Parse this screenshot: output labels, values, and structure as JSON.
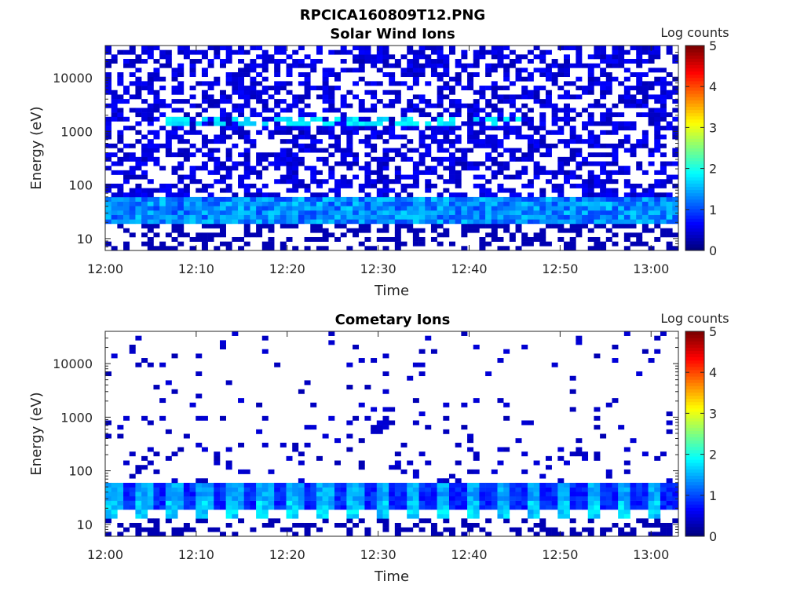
{
  "figure_title": "RPCICA160809T12.PNG",
  "chart_data": [
    {
      "type": "heatmap",
      "title": "Solar Wind Ions",
      "xlabel": "Time",
      "ylabel": "Energy (eV)",
      "x_ticks": [
        "12:00",
        "12:10",
        "12:20",
        "12:30",
        "12:40",
        "12:50",
        "13:00"
      ],
      "y_ticks": [
        "10",
        "100",
        "1000",
        "10000"
      ],
      "y_scale": "log",
      "ylim": [
        6,
        40000
      ],
      "xlim": [
        "12:00",
        "13:03"
      ],
      "colorbar": {
        "label": "Log counts",
        "ticks": [
          "0",
          "1",
          "2",
          "3",
          "4",
          "5"
        ],
        "range": [
          0,
          5
        ]
      },
      "background_counts": "sparse 0.1-0.5 log counts across all energies",
      "bands": [
        {
          "energy_min_eV": 20,
          "energy_max_eV": 55,
          "log_counts": 1.0,
          "description": "persistent low-energy band"
        },
        {
          "energy_min_eV": 1500,
          "energy_max_eV": 1900,
          "log_counts": 1.8,
          "description": "intermittent solar wind peak ~12:06-12:45"
        }
      ]
    },
    {
      "type": "heatmap",
      "title": "Cometary Ions",
      "xlabel": "Time",
      "ylabel": "Energy (eV)",
      "x_ticks": [
        "12:00",
        "12:10",
        "12:20",
        "12:30",
        "12:40",
        "12:50",
        "13:00"
      ],
      "y_ticks": [
        "10",
        "100",
        "1000",
        "10000"
      ],
      "y_scale": "log",
      "ylim": [
        6,
        40000
      ],
      "xlim": [
        "12:00",
        "13:03"
      ],
      "colorbar": {
        "label": "Log counts",
        "ticks": [
          "0",
          "1",
          "2",
          "3",
          "4",
          "5"
        ],
        "range": [
          0,
          5
        ]
      },
      "background_counts": "very sparse, mostly 0.1-0.5 log counts",
      "bands": [
        {
          "energy_min_eV": 15,
          "energy_max_eV": 55,
          "log_counts": 1.5,
          "description": "pulsed low-energy band, period ~3.3 min"
        }
      ]
    }
  ]
}
